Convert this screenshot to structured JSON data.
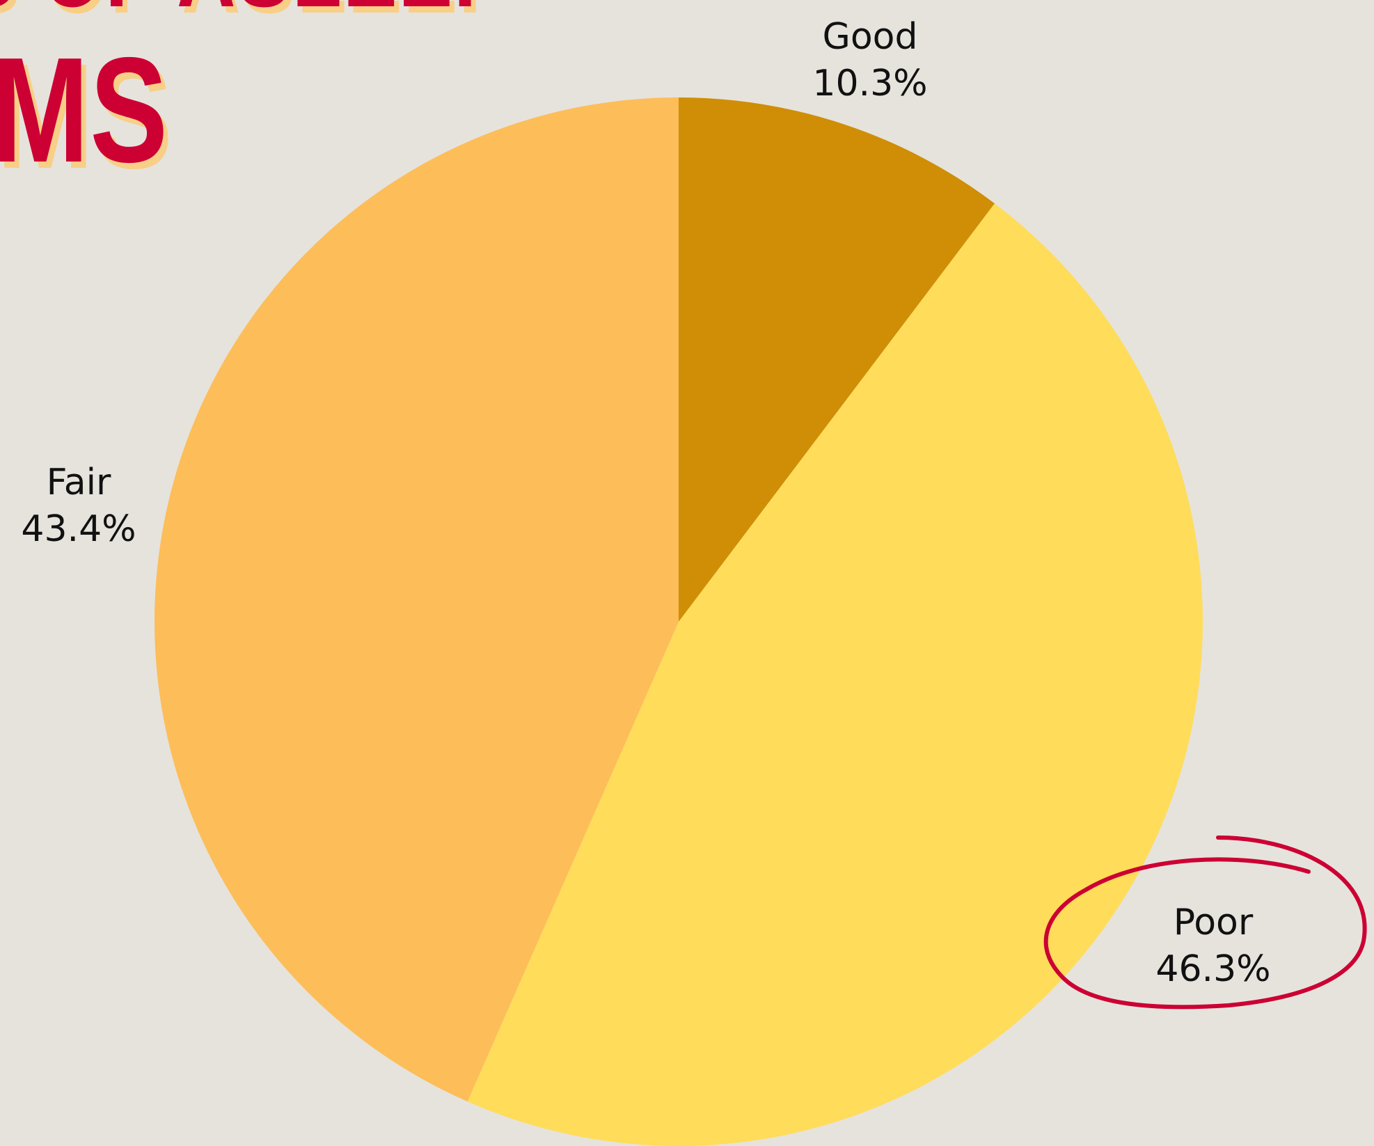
{
  "title": {
    "line1": "S OF ASLEEP",
    "line2": "MS"
  },
  "colors": {
    "background": "#e6e3dd",
    "title": "#cc0033",
    "title_shadow": "#f7cf86",
    "highlight_circle": "#cc0033"
  },
  "chart_data": {
    "type": "pie",
    "start": "12 o'clock",
    "direction": "clockwise",
    "slices": [
      {
        "label": "Good",
        "value": 10.3,
        "display": "10.3%",
        "color": "#cf8e05"
      },
      {
        "label": "Poor",
        "value": 46.3,
        "display": "46.3%",
        "color": "#ffdc5a",
        "highlighted": true
      },
      {
        "label": "Fair",
        "value": 43.4,
        "display": "43.4%",
        "color": "#fdbd59"
      }
    ]
  }
}
